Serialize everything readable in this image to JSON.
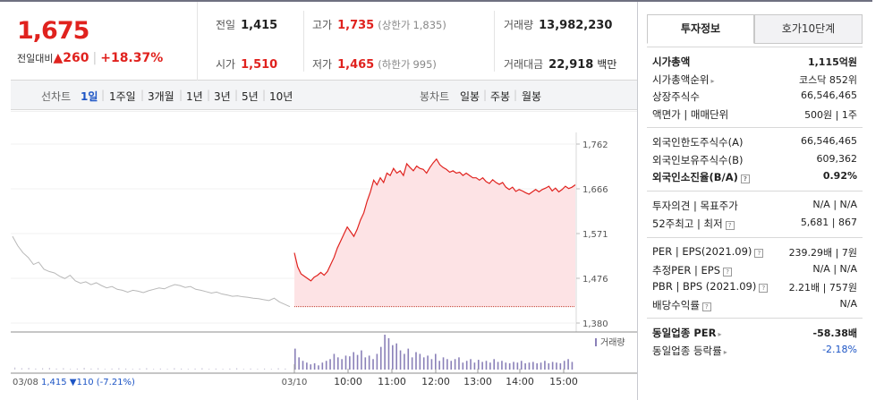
{
  "quote": {
    "price": "1,675",
    "change_label": "전일대비",
    "change_arrow": "▲",
    "change": "260",
    "change_pct": "+18.37%",
    "prev_close_label": "전일",
    "prev_close": "1,415",
    "high_label": "고가",
    "high": "1,735",
    "upper_limit_label": "(상한가",
    "upper_limit": "1,835)",
    "volume_label": "거래량",
    "volume": "13,982,230",
    "open_label": "시가",
    "open": "1,510",
    "low_label": "저가",
    "low": "1,465",
    "lower_limit_label": "(하한가",
    "lower_limit": "995)",
    "amount_label": "거래대금",
    "amount": "22,918",
    "amount_unit": "백만"
  },
  "chart_tabs": {
    "line_label": "선차트",
    "periods": [
      "1일",
      "1주일",
      "3개월",
      "1년",
      "3년",
      "5년",
      "10년"
    ],
    "active": "1일",
    "candle_label": "봉차트",
    "candles": [
      "일봉",
      "주봉",
      "월봉"
    ]
  },
  "chart_data": {
    "type": "line",
    "y_ticks": [
      "1,762",
      "1,666",
      "1,571",
      "1,476",
      "1,380"
    ],
    "ylim": [
      1380,
      1762
    ],
    "prev_session": {
      "date": "03/08",
      "close": "1,415",
      "change": "▼110",
      "change_pct": "(-7.21%)",
      "values": [
        1565,
        1545,
        1530,
        1520,
        1505,
        1510,
        1495,
        1490,
        1487,
        1480,
        1475,
        1482,
        1470,
        1465,
        1468,
        1462,
        1466,
        1460,
        1455,
        1458,
        1452,
        1450,
        1446,
        1450,
        1448,
        1445,
        1449,
        1452,
        1455,
        1453,
        1458,
        1462,
        1460,
        1456,
        1458,
        1452,
        1450,
        1447,
        1444,
        1446,
        1442,
        1440,
        1437,
        1438,
        1436,
        1435,
        1433,
        1432,
        1430,
        1428,
        1433,
        1425,
        1420,
        1415
      ]
    },
    "today": {
      "date": "03/10",
      "x_ticks": [
        "10:00",
        "11:00",
        "12:00",
        "13:00",
        "14:00",
        "15:00"
      ],
      "prev_close_line": 1415,
      "values": [
        1530,
        1500,
        1485,
        1480,
        1475,
        1470,
        1478,
        1482,
        1488,
        1482,
        1490,
        1505,
        1520,
        1540,
        1555,
        1570,
        1585,
        1575,
        1565,
        1580,
        1600,
        1615,
        1640,
        1660,
        1685,
        1675,
        1690,
        1680,
        1700,
        1695,
        1710,
        1700,
        1705,
        1695,
        1720,
        1712,
        1705,
        1715,
        1710,
        1708,
        1700,
        1712,
        1722,
        1730,
        1718,
        1712,
        1708,
        1702,
        1705,
        1700,
        1702,
        1695,
        1700,
        1695,
        1690,
        1690,
        1685,
        1690,
        1682,
        1678,
        1686,
        1680,
        1676,
        1680,
        1670,
        1665,
        1670,
        1661,
        1665,
        1662,
        1658,
        1655,
        1660,
        1665,
        1660,
        1665,
        1668,
        1672,
        1662,
        1668,
        1660,
        1665,
        1672,
        1667,
        1670,
        1675
      ]
    },
    "volume_label": "거래량",
    "volume_prev": [
      0.06,
      0.04,
      0.05,
      0.03,
      0.04,
      0.05,
      0.03,
      0.04,
      0.02,
      0.03,
      0.05,
      0.03,
      0.04,
      0.02,
      0.03,
      0.04,
      0.03,
      0.02,
      0.03,
      0.04,
      0.02,
      0.03,
      0.02,
      0.04,
      0.03,
      0.02,
      0.03,
      0.04,
      0.02,
      0.03,
      0.02,
      0.03,
      0.04,
      0.02,
      0.03,
      0.02,
      0.03,
      0.02,
      0.04,
      0.03
    ],
    "volume_today": [
      0.6,
      0.35,
      0.25,
      0.2,
      0.15,
      0.18,
      0.12,
      0.2,
      0.25,
      0.3,
      0.45,
      0.35,
      0.3,
      0.4,
      0.38,
      0.5,
      0.42,
      0.55,
      0.35,
      0.4,
      0.3,
      0.45,
      0.65,
      1.0,
      0.9,
      0.7,
      0.75,
      0.55,
      0.45,
      0.6,
      0.35,
      0.5,
      0.45,
      0.35,
      0.4,
      0.3,
      0.45,
      0.25,
      0.35,
      0.3,
      0.25,
      0.3,
      0.35,
      0.2,
      0.25,
      0.3,
      0.2,
      0.28,
      0.22,
      0.25,
      0.2,
      0.3,
      0.22,
      0.25,
      0.2,
      0.18,
      0.22,
      0.2,
      0.25,
      0.18,
      0.2,
      0.22,
      0.18,
      0.2,
      0.25,
      0.18,
      0.22,
      0.2,
      0.18,
      0.25,
      0.3,
      0.22
    ]
  },
  "info": {
    "tabs": [
      "투자정보",
      "호가10단계"
    ],
    "rows1": [
      {
        "k": "시가총액",
        "v": "1,115억원",
        "bold": true
      },
      {
        "k": "시가총액순위",
        "v": "코스닥 852위",
        "arrow": true
      },
      {
        "k": "상장주식수",
        "v": "66,546,465"
      },
      {
        "k": "액면가 | 매매단위",
        "v": "500원 | 1주"
      }
    ],
    "rows2": [
      {
        "k": "외국인한도주식수(A)",
        "v": "66,546,465"
      },
      {
        "k": "외국인보유주식수(B)",
        "v": "609,362"
      },
      {
        "k": "외국인소진율(B/A)",
        "v": "0.92%",
        "bold": true,
        "q": true
      }
    ],
    "rows3": [
      {
        "k": "투자의견 | 목표주가",
        "v": "N/A | N/A"
      },
      {
        "k": "52주최고 | 최저",
        "v": "5,681 | 867",
        "q": true
      }
    ],
    "rows4": [
      {
        "k": "PER | EPS(2021.09)",
        "v": "239.29배 | 7원",
        "q": true
      },
      {
        "k": "추정PER | EPS",
        "v": "N/A | N/A",
        "q": true
      },
      {
        "k": "PBR | BPS (2021.09)",
        "v": "2.21배 | 757원",
        "q": true
      },
      {
        "k": "배당수익률",
        "v": "N/A",
        "q": true
      }
    ],
    "rows5": [
      {
        "k": "동일업종 PER",
        "v": "-58.38배",
        "bold": true,
        "arrow": true
      },
      {
        "k": "동일업종 등락률",
        "v": "-2.18%",
        "arrow": true,
        "blue": true
      }
    ],
    "q_mark": "?",
    "row_arrow": "▸"
  },
  "colors": {
    "up": "#e0221e",
    "down": "#1d55c5",
    "fill": "#fde3e5",
    "prev_line": "#b8b8b8",
    "volume": "#8a80b8"
  }
}
